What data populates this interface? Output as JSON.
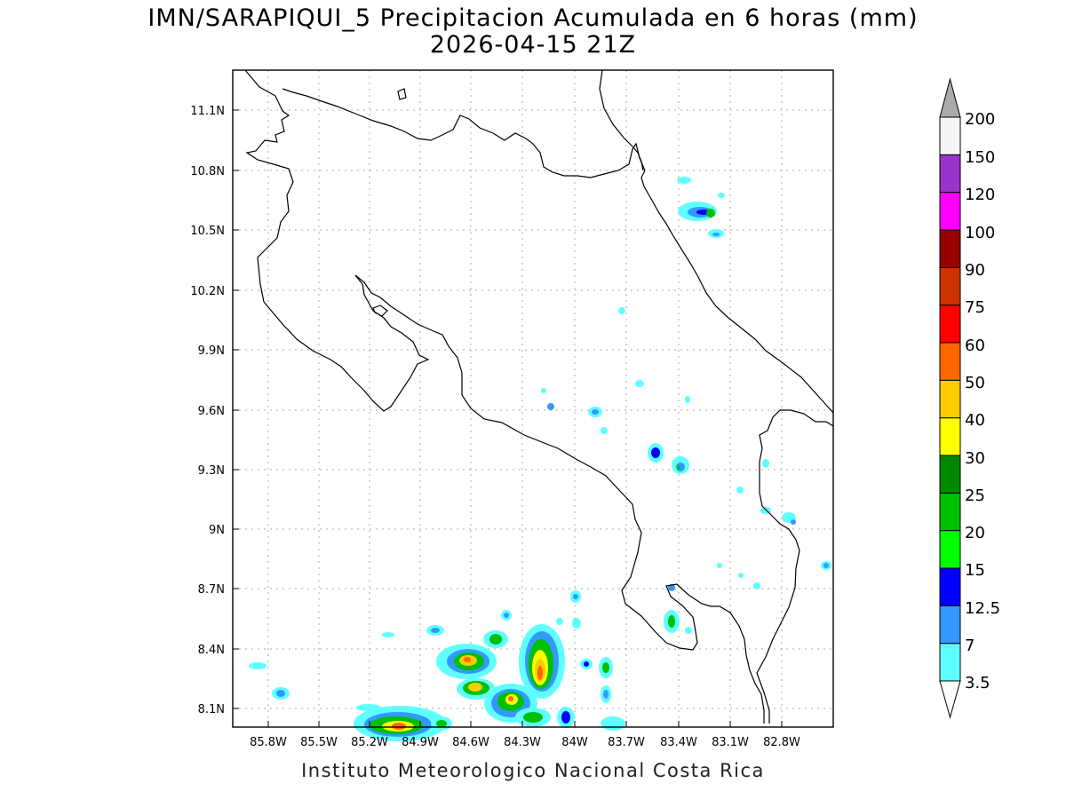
{
  "title": {
    "line1": "IMN/SARAPIQUI_5 Precipitacion Acumulada en 6 horas (mm)",
    "line2": "2026-04-15 21Z"
  },
  "credit": "Instituto Meteorologico Nacional Costa Rica",
  "map": {
    "lon_range": [
      -86.0,
      -83.0
    ],
    "lat_range": [
      8.0,
      11.3
    ],
    "grid": "dotted",
    "lon_ticks": [
      "85.8W",
      "85.5W",
      "85.2W",
      "84.9W",
      "84.6W",
      "84.3W",
      "84W",
      "83.7W",
      "83.4W",
      "83.1W",
      "82.8W"
    ],
    "lat_ticks": [
      "11.1N",
      "10.8N",
      "10.5N",
      "10.2N",
      "9.9N",
      "9.6N",
      "9.3N",
      "9N",
      "8.7N",
      "8.4N",
      "8.1N"
    ]
  },
  "colorbar": {
    "labels": [
      "3.5",
      "7",
      "12.5",
      "15",
      "20",
      "25",
      "30",
      "40",
      "50",
      "60",
      "75",
      "90",
      "100",
      "120",
      "150",
      "200"
    ],
    "colors": [
      "#ffffff",
      "#5fffff",
      "#3399ff",
      "#0000ff",
      "#00ff00",
      "#00c000",
      "#008800",
      "#ffff00",
      "#ffcc00",
      "#ff6600",
      "#ff0000",
      "#cc3300",
      "#990000",
      "#ff00ff",
      "#9933cc",
      "#f5f5f5",
      "#aaaaaa"
    ]
  }
}
